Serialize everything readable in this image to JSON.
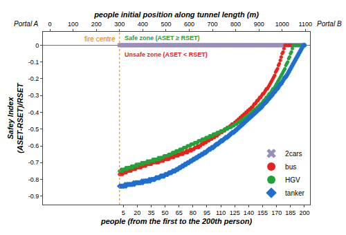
{
  "chart_data": {
    "type": "scatter",
    "x_label": "people (from the first to the 200th person)",
    "x2_label": "people initial position along tunnel length (m)",
    "y_label": [
      "Safey Index",
      "(ASET-RSET)/RSET"
    ],
    "xlim": [
      -81.5,
      206
    ],
    "xticks": [
      5,
      20,
      35,
      50,
      65,
      80,
      95,
      110,
      125,
      140,
      155,
      170,
      185,
      200
    ],
    "x2lim": [
      -30,
      1120
    ],
    "x2ticks": [
      0,
      100,
      200,
      300,
      400,
      500,
      600,
      700,
      800,
      900,
      1000,
      1100
    ],
    "ylim": [
      -0.95,
      0.08
    ],
    "yticks": [
      0,
      -0.1,
      -0.2,
      -0.3,
      -0.4,
      -0.5,
      -0.6,
      -0.7,
      -0.8,
      -0.9
    ],
    "grid": false,
    "legend": "lower right",
    "portals": [
      "Portal A",
      "Portal B"
    ],
    "fire_centre": {
      "text": "fire centre",
      "x": 300,
      "color": "#e07b00"
    },
    "zones": [
      {
        "text": "Safe zone (ASET ≥ RSET)",
        "color": "#1e9b3a"
      },
      {
        "text": "Unsafe zone (ASET < RSET)",
        "color": "#e8231c"
      }
    ],
    "x": [
      1,
      2,
      3,
      4,
      5,
      6,
      7,
      8,
      9,
      10,
      11,
      12,
      13,
      14,
      15,
      16,
      17,
      18,
      19,
      20,
      21,
      22,
      23,
      24,
      25,
      26,
      27,
      28,
      29,
      30,
      31,
      32,
      33,
      34,
      35,
      36,
      37,
      38,
      39,
      40,
      41,
      42,
      43,
      44,
      45,
      46,
      47,
      48,
      49,
      50,
      51,
      52,
      53,
      54,
      55,
      56,
      57,
      58,
      59,
      60,
      61,
      62,
      63,
      64,
      65,
      66,
      67,
      68,
      69,
      70,
      71,
      72,
      73,
      74,
      75,
      76,
      77,
      78,
      79,
      80,
      81,
      82,
      83,
      84,
      85,
      86,
      87,
      88,
      89,
      90,
      91,
      92,
      93,
      94,
      95,
      96,
      97,
      98,
      99,
      100,
      101,
      102,
      103,
      104,
      105,
      106,
      107,
      108,
      109,
      110,
      111,
      112,
      113,
      114,
      115,
      116,
      117,
      118,
      119,
      120,
      121,
      122,
      123,
      124,
      125,
      126,
      127,
      128,
      129,
      130,
      131,
      132,
      133,
      134,
      135,
      136,
      137,
      138,
      139,
      140,
      141,
      142,
      143,
      144,
      145,
      146,
      147,
      148,
      149,
      150,
      151,
      152,
      153,
      154,
      155,
      156,
      157,
      158,
      159,
      160,
      161,
      162,
      163,
      164,
      165,
      166,
      167,
      168,
      169,
      170,
      171,
      172,
      173,
      174,
      175,
      176,
      177,
      178,
      179,
      180,
      181,
      182,
      183,
      184,
      185,
      186,
      187,
      188,
      189,
      190,
      191,
      192,
      193,
      194,
      195,
      196,
      197,
      198,
      199,
      200
    ],
    "series": [
      {
        "name": "2cars",
        "color": "#9a8fb8",
        "marker": "x",
        "values": [
          0,
          0,
          0,
          0,
          0,
          0,
          0,
          0,
          0,
          0,
          0,
          0,
          0,
          0,
          0,
          0,
          0,
          0,
          0,
          0,
          0,
          0,
          0,
          0,
          0,
          0,
          0,
          0,
          0,
          0,
          0,
          0,
          0,
          0,
          0,
          0,
          0,
          0,
          0,
          0,
          0,
          0,
          0,
          0,
          0,
          0,
          0,
          0,
          0,
          0,
          0,
          0,
          0,
          0,
          0,
          0,
          0,
          0,
          0,
          0,
          0,
          0,
          0,
          0,
          0,
          0,
          0,
          0,
          0,
          0,
          0,
          0,
          0,
          0,
          0,
          0,
          0,
          0,
          0,
          0,
          0,
          0,
          0,
          0,
          0,
          0,
          0,
          0,
          0,
          0,
          0,
          0,
          0,
          0,
          0,
          0,
          0,
          0,
          0,
          0,
          0,
          0,
          0,
          0,
          0,
          0,
          0,
          0,
          0,
          0,
          0,
          0,
          0,
          0,
          0,
          0,
          0,
          0,
          0,
          0,
          0,
          0,
          0,
          0,
          0,
          0,
          0,
          0,
          0,
          0,
          0,
          0,
          0,
          0,
          0,
          0,
          0,
          0,
          0,
          0,
          0,
          0,
          0,
          0,
          0,
          0,
          0,
          0,
          0,
          0,
          0,
          0,
          0,
          0,
          0,
          0,
          0,
          0,
          0,
          0,
          0,
          0,
          0,
          0,
          0,
          0,
          0,
          0,
          0,
          0,
          0,
          0,
          0,
          0,
          0,
          0,
          0,
          0,
          0,
          0,
          0,
          0,
          0,
          0,
          0,
          0,
          0,
          0,
          0,
          0,
          0,
          0,
          0,
          0,
          0,
          0,
          0,
          0,
          0,
          0
        ]
      },
      {
        "name": "bus",
        "color": "#e8231c",
        "marker": "circle",
        "values": [
          -0.77,
          -0.77,
          -0.76,
          -0.77,
          -0.76,
          -0.76,
          -0.75,
          -0.76,
          -0.75,
          -0.75,
          -0.75,
          -0.74,
          -0.75,
          -0.74,
          -0.74,
          -0.74,
          -0.73,
          -0.74,
          -0.73,
          -0.73,
          -0.73,
          -0.73,
          -0.72,
          -0.73,
          -0.72,
          -0.72,
          -0.72,
          -0.71,
          -0.72,
          -0.71,
          -0.71,
          -0.71,
          -0.71,
          -0.7,
          -0.71,
          -0.7,
          -0.7,
          -0.7,
          -0.69,
          -0.7,
          -0.7,
          -0.69,
          -0.7,
          -0.69,
          -0.69,
          -0.69,
          -0.68,
          -0.69,
          -0.68,
          -0.68,
          -0.68,
          -0.68,
          -0.67,
          -0.68,
          -0.67,
          -0.67,
          -0.67,
          -0.66,
          -0.67,
          -0.66,
          -0.66,
          -0.66,
          -0.65,
          -0.66,
          -0.65,
          -0.65,
          -0.65,
          -0.64,
          -0.65,
          -0.64,
          -0.64,
          -0.64,
          -0.63,
          -0.64,
          -0.63,
          -0.63,
          -0.62,
          -0.63,
          -0.62,
          -0.62,
          -0.62,
          -0.61,
          -0.61,
          -0.61,
          -0.6,
          -0.61,
          -0.6,
          -0.6,
          -0.59,
          -0.59,
          -0.59,
          -0.58,
          -0.58,
          -0.58,
          -0.57,
          -0.57,
          -0.57,
          -0.56,
          -0.56,
          -0.56,
          -0.55,
          -0.55,
          -0.55,
          -0.54,
          -0.54,
          -0.54,
          -0.53,
          -0.53,
          -0.52,
          -0.52,
          -0.52,
          -0.51,
          -0.51,
          -0.51,
          -0.5,
          -0.5,
          -0.49,
          -0.49,
          -0.49,
          -0.48,
          -0.48,
          -0.47,
          -0.47,
          -0.47,
          -0.46,
          -0.46,
          -0.45,
          -0.45,
          -0.44,
          -0.44,
          -0.43,
          -0.43,
          -0.42,
          -0.42,
          -0.41,
          -0.41,
          -0.4,
          -0.4,
          -0.39,
          -0.39,
          -0.38,
          -0.38,
          -0.37,
          -0.37,
          -0.36,
          -0.35,
          -0.35,
          -0.34,
          -0.33,
          -0.33,
          -0.32,
          -0.31,
          -0.31,
          -0.3,
          -0.29,
          -0.29,
          -0.28,
          -0.27,
          -0.26,
          -0.26,
          -0.25,
          -0.24,
          -0.23,
          -0.22,
          -0.21,
          -0.2,
          -0.19,
          -0.18,
          -0.16,
          -0.15,
          -0.14,
          -0.12,
          -0.11,
          -0.09,
          -0.07,
          -0.05,
          -0.04,
          -0.02,
          0,
          0,
          0,
          0,
          0,
          0,
          0,
          0,
          0,
          0,
          0,
          0,
          0,
          0,
          0,
          0,
          0,
          0,
          0,
          0,
          0,
          0
        ]
      },
      {
        "name": "HGV",
        "color": "#22a33a",
        "marker": "circle",
        "values": [
          -0.75,
          -0.75,
          -0.74,
          -0.75,
          -0.74,
          -0.74,
          -0.74,
          -0.73,
          -0.74,
          -0.73,
          -0.73,
          -0.73,
          -0.73,
          -0.72,
          -0.73,
          -0.72,
          -0.72,
          -0.72,
          -0.71,
          -0.72,
          -0.71,
          -0.71,
          -0.71,
          -0.71,
          -0.7,
          -0.71,
          -0.7,
          -0.7,
          -0.7,
          -0.7,
          -0.69,
          -0.7,
          -0.69,
          -0.69,
          -0.69,
          -0.69,
          -0.68,
          -0.69,
          -0.68,
          -0.68,
          -0.68,
          -0.68,
          -0.67,
          -0.68,
          -0.67,
          -0.67,
          -0.67,
          -0.67,
          -0.66,
          -0.66,
          -0.66,
          -0.66,
          -0.66,
          -0.65,
          -0.65,
          -0.65,
          -0.65,
          -0.64,
          -0.64,
          -0.64,
          -0.64,
          -0.63,
          -0.63,
          -0.63,
          -0.63,
          -0.62,
          -0.62,
          -0.62,
          -0.62,
          -0.61,
          -0.61,
          -0.61,
          -0.61,
          -0.6,
          -0.6,
          -0.6,
          -0.6,
          -0.59,
          -0.59,
          -0.59,
          -0.59,
          -0.58,
          -0.58,
          -0.58,
          -0.58,
          -0.57,
          -0.57,
          -0.57,
          -0.57,
          -0.56,
          -0.56,
          -0.56,
          -0.56,
          -0.55,
          -0.55,
          -0.55,
          -0.55,
          -0.54,
          -0.54,
          -0.54,
          -0.54,
          -0.53,
          -0.53,
          -0.53,
          -0.53,
          -0.52,
          -0.52,
          -0.52,
          -0.52,
          -0.51,
          -0.51,
          -0.51,
          -0.51,
          -0.5,
          -0.5,
          -0.5,
          -0.5,
          -0.49,
          -0.49,
          -0.49,
          -0.49,
          -0.48,
          -0.48,
          -0.48,
          -0.47,
          -0.47,
          -0.47,
          -0.46,
          -0.46,
          -0.46,
          -0.45,
          -0.45,
          -0.45,
          -0.44,
          -0.44,
          -0.43,
          -0.43,
          -0.43,
          -0.42,
          -0.42,
          -0.41,
          -0.41,
          -0.4,
          -0.4,
          -0.39,
          -0.39,
          -0.38,
          -0.38,
          -0.37,
          -0.37,
          -0.36,
          -0.36,
          -0.35,
          -0.35,
          -0.34,
          -0.33,
          -0.33,
          -0.32,
          -0.31,
          -0.31,
          -0.3,
          -0.29,
          -0.29,
          -0.28,
          -0.27,
          -0.26,
          -0.26,
          -0.25,
          -0.24,
          -0.23,
          -0.22,
          -0.21,
          -0.2,
          -0.19,
          -0.18,
          -0.17,
          -0.16,
          -0.15,
          -0.14,
          -0.12,
          -0.11,
          -0.1,
          -0.08,
          -0.07,
          -0.05,
          -0.04,
          -0.02,
          0,
          0,
          0,
          0,
          0,
          0,
          0,
          0,
          0,
          0,
          0,
          0,
          0
        ]
      },
      {
        "name": "tanker",
        "color": "#1f6fd0",
        "marker": "diamond",
        "values": [
          -0.84,
          -0.84,
          -0.84,
          -0.84,
          -0.84,
          -0.84,
          -0.83,
          -0.84,
          -0.83,
          -0.83,
          -0.83,
          -0.83,
          -0.83,
          -0.83,
          -0.83,
          -0.82,
          -0.83,
          -0.82,
          -0.82,
          -0.82,
          -0.82,
          -0.82,
          -0.82,
          -0.82,
          -0.81,
          -0.82,
          -0.81,
          -0.81,
          -0.81,
          -0.81,
          -0.81,
          -0.81,
          -0.8,
          -0.81,
          -0.8,
          -0.8,
          -0.8,
          -0.8,
          -0.8,
          -0.79,
          -0.79,
          -0.79,
          -0.79,
          -0.79,
          -0.78,
          -0.78,
          -0.78,
          -0.78,
          -0.78,
          -0.77,
          -0.77,
          -0.77,
          -0.77,
          -0.76,
          -0.76,
          -0.76,
          -0.76,
          -0.75,
          -0.75,
          -0.75,
          -0.75,
          -0.74,
          -0.74,
          -0.74,
          -0.73,
          -0.73,
          -0.73,
          -0.72,
          -0.72,
          -0.72,
          -0.71,
          -0.71,
          -0.71,
          -0.7,
          -0.7,
          -0.7,
          -0.69,
          -0.69,
          -0.69,
          -0.68,
          -0.68,
          -0.68,
          -0.67,
          -0.67,
          -0.67,
          -0.66,
          -0.66,
          -0.66,
          -0.65,
          -0.65,
          -0.65,
          -0.64,
          -0.64,
          -0.64,
          -0.63,
          -0.63,
          -0.62,
          -0.62,
          -0.62,
          -0.61,
          -0.61,
          -0.61,
          -0.6,
          -0.6,
          -0.59,
          -0.59,
          -0.59,
          -0.58,
          -0.58,
          -0.57,
          -0.57,
          -0.57,
          -0.56,
          -0.56,
          -0.55,
          -0.55,
          -0.55,
          -0.54,
          -0.54,
          -0.53,
          -0.53,
          -0.52,
          -0.52,
          -0.52,
          -0.51,
          -0.51,
          -0.5,
          -0.5,
          -0.49,
          -0.49,
          -0.48,
          -0.48,
          -0.47,
          -0.47,
          -0.46,
          -0.46,
          -0.45,
          -0.45,
          -0.44,
          -0.44,
          -0.43,
          -0.43,
          -0.42,
          -0.42,
          -0.41,
          -0.41,
          -0.4,
          -0.4,
          -0.39,
          -0.39,
          -0.38,
          -0.38,
          -0.37,
          -0.37,
          -0.36,
          -0.35,
          -0.35,
          -0.34,
          -0.34,
          -0.33,
          -0.32,
          -0.32,
          -0.31,
          -0.3,
          -0.3,
          -0.29,
          -0.28,
          -0.28,
          -0.27,
          -0.26,
          -0.26,
          -0.25,
          -0.24,
          -0.23,
          -0.23,
          -0.22,
          -0.21,
          -0.2,
          -0.19,
          -0.19,
          -0.18,
          -0.17,
          -0.16,
          -0.15,
          -0.14,
          -0.13,
          -0.12,
          -0.11,
          -0.1,
          -0.09,
          -0.08,
          -0.07,
          -0.06,
          -0.05,
          -0.04,
          -0.03,
          -0.02,
          -0.01,
          0,
          0
        ]
      }
    ]
  }
}
